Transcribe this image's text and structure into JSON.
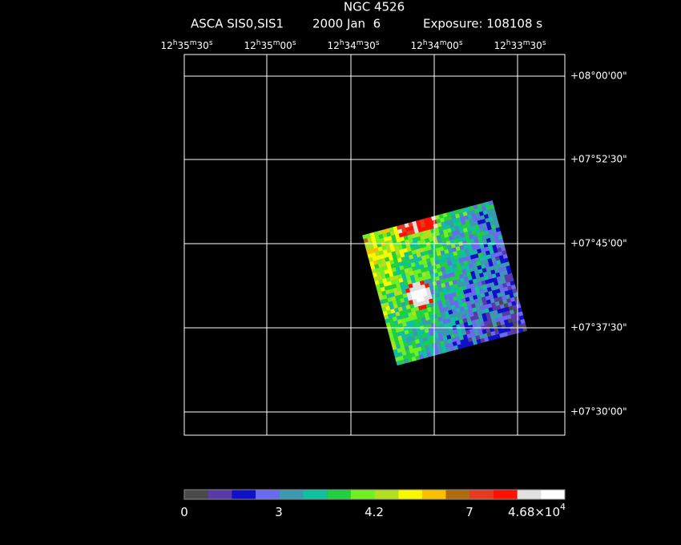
{
  "header": {
    "title": "NGC 4526",
    "instrument": "ASCA SIS0,SIS1",
    "date": "2000 Jan  6",
    "exposure": "Exposure: 108108 s"
  },
  "ra_ticks": [
    [
      "12",
      "h",
      "35",
      "m",
      "30",
      "s"
    ],
    [
      "12",
      "h",
      "35",
      "m",
      "00",
      "s"
    ],
    [
      "12",
      "h",
      "34",
      "m",
      "30",
      "s"
    ],
    [
      "12",
      "h",
      "34",
      "m",
      "00",
      "s"
    ],
    [
      "12",
      "h",
      "33",
      "m",
      "30",
      "s"
    ]
  ],
  "dec_ticks": [
    "+08°00'00\"",
    "+07°52'30\"",
    "+07°45'00\"",
    "+07°37'30\"",
    "+07°30'00\""
  ],
  "colorbar": {
    "labels": [
      [
        "0"
      ],
      [
        "3"
      ],
      [
        "4.2"
      ],
      [
        "7"
      ],
      [
        "4.68×10",
        "4"
      ]
    ],
    "colors": [
      "#4a4a4a",
      "#5a3aa8",
      "#1010c8",
      "#6a6af0",
      "#3a9ab0",
      "#10c0a0",
      "#20d040",
      "#70f020",
      "#b0e020",
      "#f8f800",
      "#f8c000",
      "#b06a10",
      "#e83a20",
      "#ff1000",
      "#e0e0e0",
      "#ffffff"
    ]
  }
}
